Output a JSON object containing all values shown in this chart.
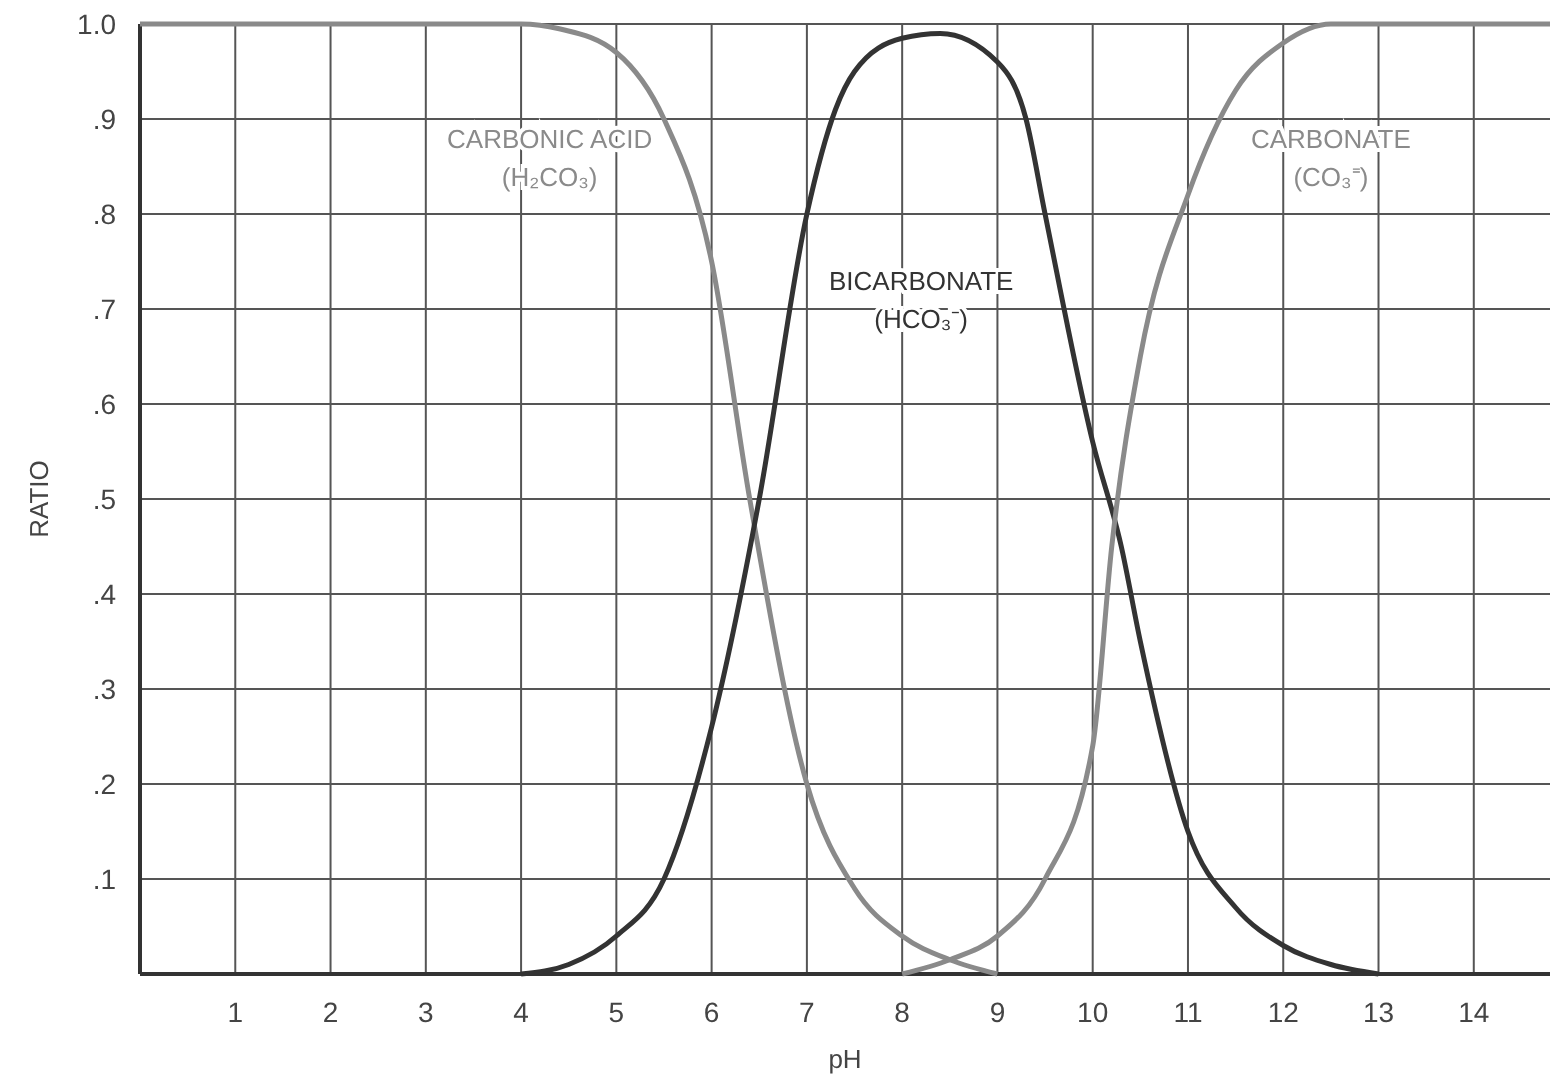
{
  "chart_data": {
    "type": "line",
    "xlabel": "pH",
    "ylabel": "RATIO",
    "xlim": [
      0,
      14.8
    ],
    "ylim": [
      0,
      1
    ],
    "xticks": [
      1,
      2,
      3,
      4,
      5,
      6,
      7,
      8,
      9,
      10,
      11,
      12,
      13,
      14
    ],
    "yticks": [
      {
        "value": 0.1,
        "label": ".1"
      },
      {
        "value": 0.2,
        "label": ".2"
      },
      {
        "value": 0.3,
        "label": ".3"
      },
      {
        "value": 0.4,
        "label": ".4"
      },
      {
        "value": 0.5,
        "label": ".5"
      },
      {
        "value": 0.6,
        "label": ".6"
      },
      {
        "value": 0.7,
        "label": ".7"
      },
      {
        "value": 0.8,
        "label": ".8"
      },
      {
        "value": 0.9,
        "label": ".9"
      },
      {
        "value": 1,
        "label": "1.0"
      }
    ],
    "grid": true,
    "marker": "none",
    "line_style": "solid",
    "series": [
      {
        "name": "CARBONIC ACID\n(H₂CO₃)",
        "color": "#8a8a8a",
        "x": [
          0,
          4,
          4.4,
          5,
          5.5,
          6,
          6.4,
          7,
          7.5,
          8,
          8.5,
          9
        ],
        "values": [
          1,
          1,
          0.995,
          0.97,
          0.9,
          0.75,
          0.5,
          0.2,
          0.09,
          0.04,
          0.015,
          0
        ]
      },
      {
        "name": "BICARBONATE\n(HCO₃⁻)",
        "color": "#333333",
        "x": [
          4,
          4.5,
          5,
          5.5,
          6,
          6.5,
          7,
          7.3,
          7.5,
          8,
          8.4,
          9,
          9.3,
          9.5,
          10,
          10.3,
          10.5,
          11,
          11.5,
          12,
          12.5,
          13
        ],
        "values": [
          0,
          0.01,
          0.04,
          0.1,
          0.26,
          0.5,
          0.8,
          0.91,
          0.95,
          0.985,
          0.99,
          0.96,
          0.9,
          0.8,
          0.56,
          0.45,
          0.35,
          0.15,
          0.07,
          0.03,
          0.01,
          0
        ]
      },
      {
        "name": "CARBONATE\n(CO₃⁼)",
        "color": "#8a8a8a",
        "x": [
          8,
          8.5,
          9,
          9.5,
          10,
          10.2,
          10.5,
          11,
          11.5,
          12,
          12.5,
          13,
          14.8
        ],
        "values": [
          0,
          0.015,
          0.04,
          0.1,
          0.24,
          0.45,
          0.65,
          0.82,
          0.93,
          0.98,
          1,
          1,
          1
        ]
      }
    ]
  }
}
